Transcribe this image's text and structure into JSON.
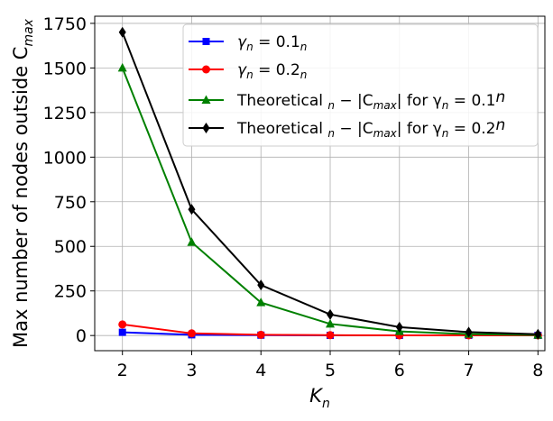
{
  "chart_data": {
    "type": "line",
    "title": "",
    "xlabel": "K",
    "xlabel_sub": "n",
    "ylabel": "Max number of nodes outside C",
    "ylabel_sub": "max",
    "x": [
      2,
      3,
      4,
      5,
      6,
      7,
      8
    ],
    "xlim": [
      1.6,
      8.1
    ],
    "ylim": [
      -85,
      1790
    ],
    "xticks": [
      2,
      3,
      4,
      5,
      6,
      7,
      8
    ],
    "yticks": [
      0,
      250,
      500,
      750,
      1000,
      1250,
      1500,
      1750
    ],
    "grid": true,
    "legend_position": "top-right",
    "series": [
      {
        "name": "γn = 0.1n",
        "color": "#0000ff",
        "marker": "square",
        "values": [
          18,
          4,
          2,
          1,
          1,
          1,
          1
        ]
      },
      {
        "name": "γn = 0.2n",
        "color": "#ff0000",
        "marker": "circle",
        "values": [
          62,
          12,
          4,
          2,
          1,
          1,
          1
        ]
      },
      {
        "name": "Theoretical n − |Cmax| for γn = 0.1n",
        "color": "#008000",
        "marker": "triangle",
        "values": [
          1500,
          523,
          185,
          65,
          23,
          8,
          3
        ]
      },
      {
        "name": "Theoretical n − |Cmax| for γn = 0.2n",
        "color": "#000000",
        "marker": "diamond",
        "values": [
          1700,
          707,
          283,
          118,
          47,
          19,
          7
        ]
      }
    ],
    "legend": [
      {
        "parts": [
          "γ",
          "n",
          " = 0.1",
          "n",
          "",
          ""
        ]
      },
      {
        "parts": [
          "γ",
          "n",
          " = 0.2",
          "n",
          "",
          ""
        ]
      },
      {
        "parts": [
          "Theoretical ",
          "n",
          " − |C",
          "max",
          "| for γ",
          "n",
          " = 0.1",
          "n"
        ]
      },
      {
        "parts": [
          "Theoretical ",
          "n",
          " − |C",
          "max",
          "| for γ",
          "n",
          " = 0.2",
          "n"
        ]
      }
    ]
  }
}
